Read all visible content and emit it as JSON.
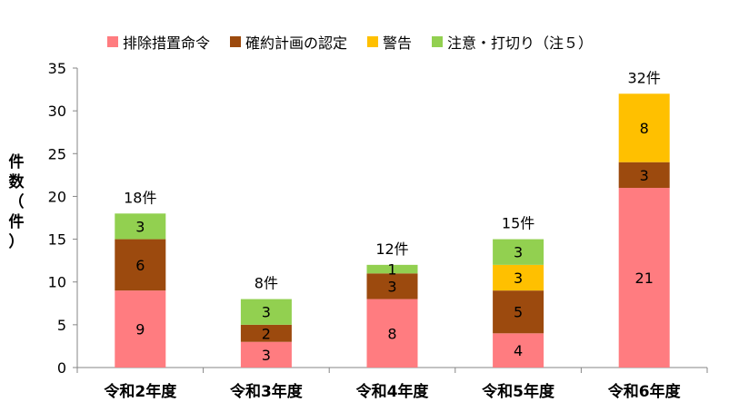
{
  "chart_data": {
    "type": "bar",
    "stacked": true,
    "categories": [
      "令和2年度",
      "令和3年度",
      "令和4年度",
      "令和5年度",
      "令和6年度"
    ],
    "series": [
      {
        "name": "排除措置命令",
        "color": "#ff7c80",
        "values": [
          9,
          3,
          8,
          4,
          21
        ]
      },
      {
        "name": "確約計画の認定",
        "color": "#9c4a0e",
        "values": [
          6,
          2,
          3,
          5,
          3
        ]
      },
      {
        "name": "警告",
        "color": "#ffc000",
        "values": [
          0,
          0,
          0,
          3,
          8
        ]
      },
      {
        "name": "注意・打切り（注５）",
        "color": "#92d050",
        "values": [
          3,
          3,
          1,
          3,
          0
        ]
      }
    ],
    "totals": [
      "18件",
      "8件",
      "12件",
      "15件",
      "32件"
    ],
    "ylabel": "件数（件）",
    "ylim": [
      0,
      35
    ],
    "yticks": [
      0,
      5,
      10,
      15,
      20,
      25,
      30,
      35
    ],
    "grid": false,
    "legend_position": "top"
  }
}
